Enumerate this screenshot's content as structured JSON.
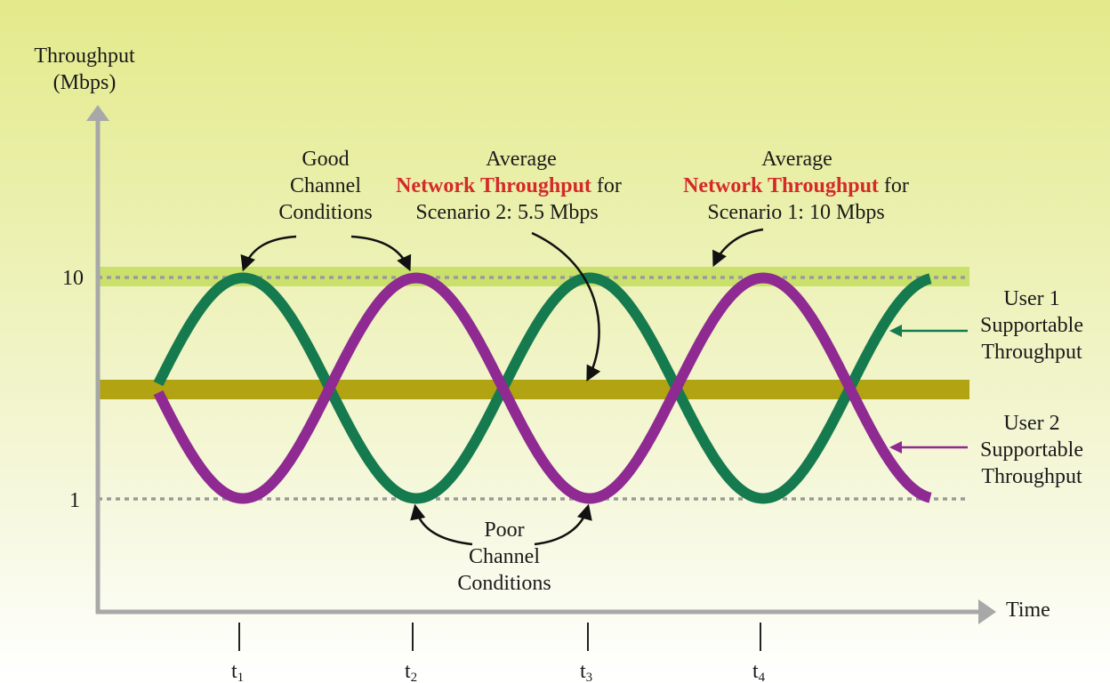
{
  "y_axis": {
    "label_line1": "Throughput",
    "label_line2": "(Mbps)",
    "ticks": [
      {
        "label": "10"
      },
      {
        "label": "1"
      }
    ]
  },
  "x_axis": {
    "label": "Time",
    "ticks": [
      {
        "label": "t",
        "sub": "1"
      },
      {
        "label": "t",
        "sub": "2"
      },
      {
        "label": "t",
        "sub": "3"
      },
      {
        "label": "t",
        "sub": "4"
      }
    ]
  },
  "annotations": {
    "good": {
      "line1": "Good",
      "line2": "Channel",
      "line3": "Conditions"
    },
    "avg2": {
      "line1": "Average",
      "strong": "Network Throughput",
      "after": " for",
      "line3": "Scenario 2: 5.5 Mbps"
    },
    "avg1": {
      "line1": "Average",
      "strong": "Network Throughput",
      "after": " for",
      "line3": "Scenario 1: 10 Mbps"
    },
    "poor": {
      "line1": "Poor",
      "line2": "Channel",
      "line3": "Conditions"
    }
  },
  "legend": {
    "user1": {
      "line1": "User 1",
      "line2": "Supportable",
      "line3": "Throughput"
    },
    "user2": {
      "line1": "User 2",
      "line2": "Supportable",
      "line3": "Throughput"
    }
  },
  "colors": {
    "user1": "#157a4e",
    "user2": "#8e2a92",
    "scenario1_band": "#c9e06a",
    "scenario2_band": "#b2a312",
    "highlight": "#d42a2a",
    "background_top": "#e3ea8a",
    "background_bottom": "#ffffff"
  }
}
